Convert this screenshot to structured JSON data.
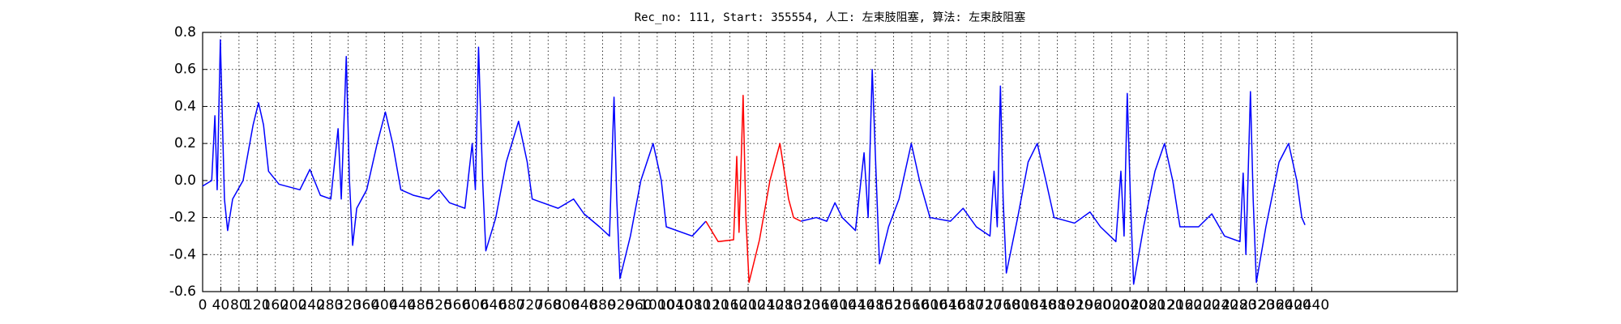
{
  "chart_data": {
    "type": "line",
    "title": "Rec_no: 111, Start: 355554, 人工: 左束肢阻塞, 算法: 左束肢阻塞",
    "grid": true,
    "xlim": [
      0,
      2760
    ],
    "xticks": [
      0,
      40,
      80,
      120,
      160,
      200,
      240,
      280,
      320,
      360,
      400,
      440,
      480,
      520,
      560,
      600,
      640,
      680,
      720,
      760,
      800,
      840,
      880,
      920,
      960,
      1000,
      1040,
      1080,
      1120,
      1160,
      1200,
      1240,
      1280,
      1320,
      1360,
      1400,
      1440,
      1480,
      1520,
      1560,
      1600,
      1640,
      1680,
      1720,
      1760,
      1800,
      1840,
      1880,
      1920,
      1960,
      2000,
      2040,
      2080,
      2120,
      2160,
      2200,
      2240,
      2280,
      2320,
      2360,
      2400,
      2440
    ],
    "ylim": [
      -0.6,
      0.8
    ],
    "yticks": [
      -0.6,
      -0.4,
      -0.2,
      {
        "value": 0,
        "label": "0.0"
      },
      0.2,
      0.4,
      0.6,
      0.8
    ],
    "series": [
      {
        "color": "#0000ff",
        "x": [
          0,
          20,
          27,
          32,
          39,
          48,
          55,
          66,
          89,
          111,
          123,
          134,
          145,
          168,
          214,
          236,
          259,
          282,
          298,
          305,
          316,
          323,
          330,
          339,
          361,
          384,
          402,
          418,
          436,
          464,
          498,
          520,
          543,
          577,
          593,
          600,
          607,
          616,
          623,
          645,
          668,
          695,
          714,
          725,
          782,
          816,
          839,
          873,
          895,
          905,
          911,
          918,
          941,
          964,
          991,
          1009,
          1020,
          1077,
          1107,
          1200,
          1316,
          1350,
          1373,
          1391,
          1407,
          1436,
          1455,
          1464,
          1473,
          1482,
          1489,
          1509,
          1532,
          1559,
          1577,
          1600,
          1645,
          1673,
          1702,
          1732,
          1741,
          1748,
          1755,
          1761,
          1768,
          1793,
          1816,
          1836,
          1855,
          1873,
          1918,
          1952,
          1975,
          2009,
          2020,
          2027,
          2034,
          2041,
          2048,
          2070,
          2095,
          2116,
          2134,
          2150,
          2191,
          2220,
          2248,
          2282,
          2289,
          2295,
          2305,
          2311,
          2318,
          2339,
          2368,
          2389,
          2407,
          2418,
          2425
        ],
        "values": [
          -0.03,
          0.0,
          0.35,
          -0.05,
          0.76,
          -0.1,
          -0.27,
          -0.1,
          0.0,
          0.3,
          0.42,
          0.3,
          0.05,
          -0.02,
          -0.05,
          0.06,
          -0.08,
          -0.1,
          0.28,
          -0.1,
          0.67,
          0.0,
          -0.35,
          -0.15,
          -0.05,
          0.2,
          0.37,
          0.2,
          -0.05,
          -0.08,
          -0.1,
          -0.05,
          -0.12,
          -0.15,
          0.2,
          -0.05,
          0.72,
          0.0,
          -0.38,
          -0.2,
          0.1,
          0.32,
          0.1,
          -0.1,
          -0.15,
          -0.1,
          -0.18,
          -0.25,
          -0.3,
          0.45,
          -0.1,
          -0.53,
          -0.3,
          0.0,
          0.2,
          0.0,
          -0.25,
          -0.3,
          -0.22,
          null,
          -0.22,
          -0.2,
          -0.22,
          -0.12,
          -0.2,
          -0.27,
          0.15,
          -0.2,
          0.6,
          0.0,
          -0.45,
          -0.25,
          -0.1,
          0.2,
          0.0,
          -0.2,
          -0.22,
          -0.15,
          -0.25,
          -0.3,
          0.05,
          -0.25,
          0.51,
          -0.1,
          -0.5,
          -0.2,
          0.1,
          0.2,
          0.0,
          -0.2,
          -0.23,
          -0.17,
          -0.25,
          -0.33,
          0.05,
          -0.3,
          0.47,
          -0.1,
          -0.56,
          -0.25,
          0.05,
          0.2,
          0.0,
          -0.25,
          -0.25,
          -0.18,
          -0.3,
          -0.33,
          0.04,
          -0.4,
          0.48,
          -0.1,
          -0.55,
          -0.25,
          0.1,
          0.2,
          0.0,
          -0.2,
          -0.24
        ]
      },
      {
        "color": "#ff0000",
        "x": [
          1107,
          1134,
          1168,
          1175,
          1180,
          1189,
          1195,
          1202,
          1225,
          1248,
          1270,
          1289,
          1300,
          1316
        ],
        "values": [
          -0.22,
          -0.33,
          -0.32,
          0.13,
          -0.28,
          0.46,
          -0.2,
          -0.55,
          -0.32,
          0.0,
          0.2,
          -0.1,
          -0.2,
          -0.22
        ]
      }
    ]
  }
}
